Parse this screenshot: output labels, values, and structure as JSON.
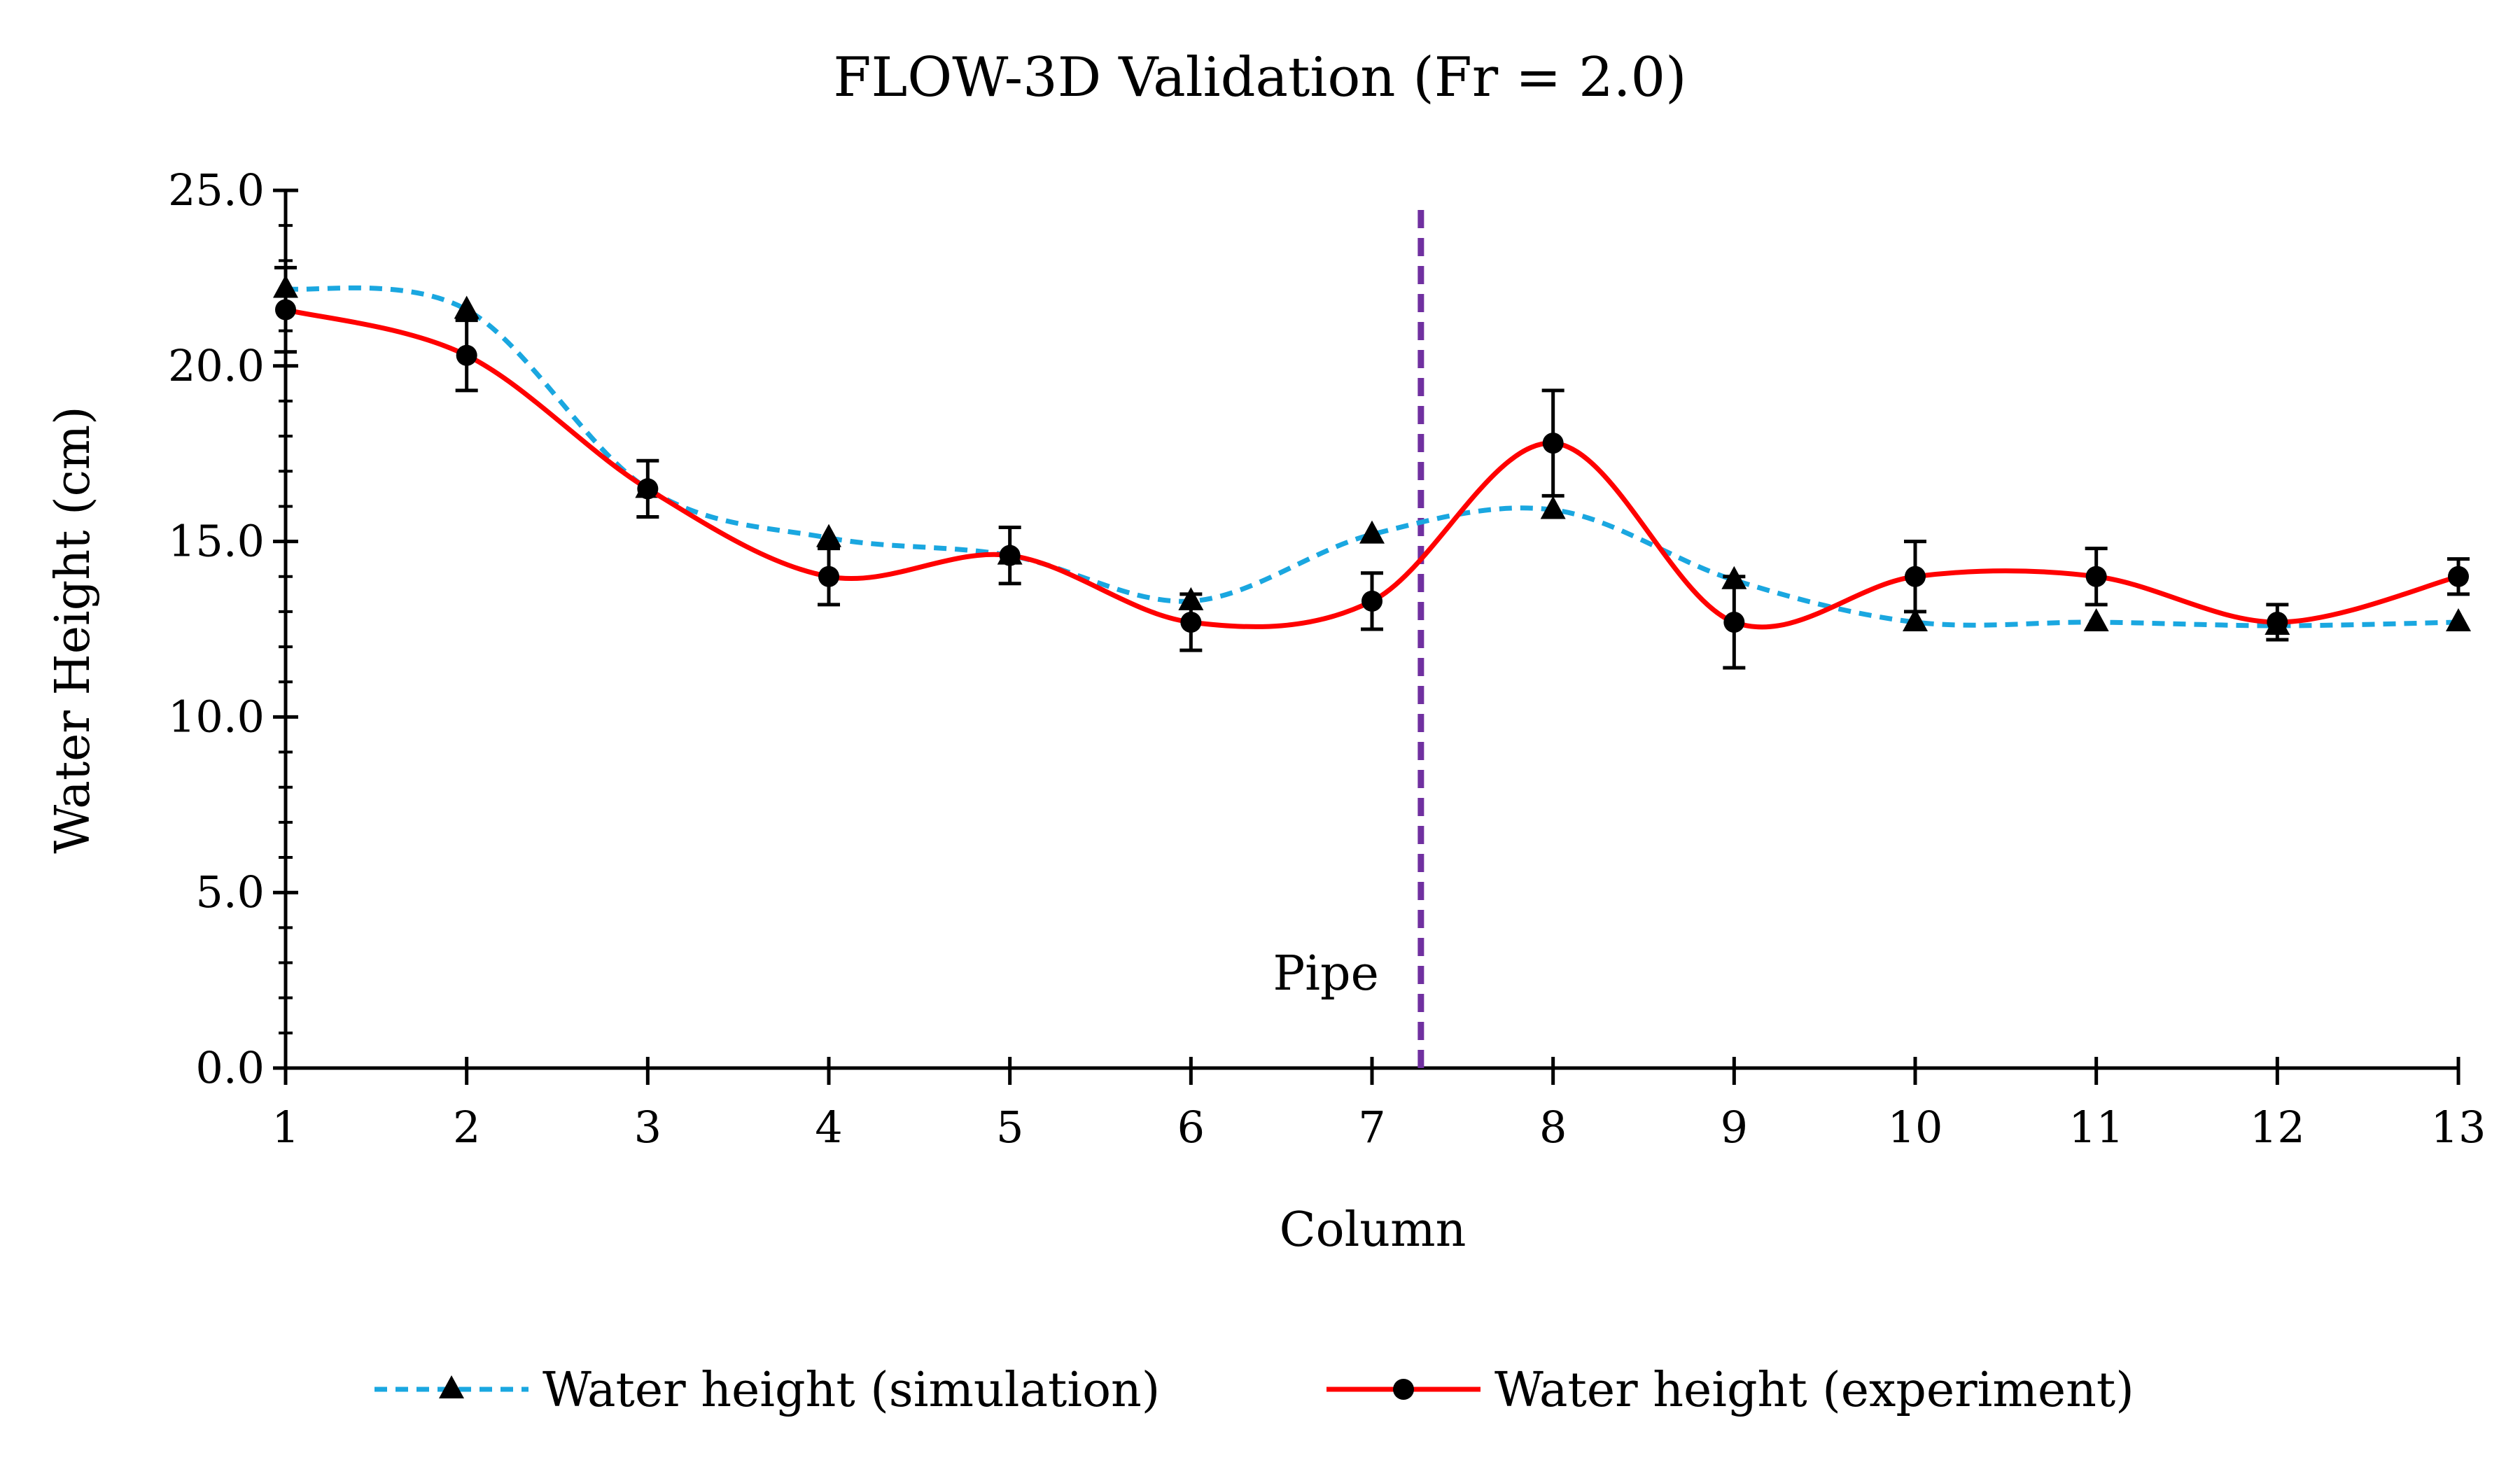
{
  "chart_data": {
    "type": "line",
    "title": "FLOW-3D Validation (Fr = 2.0)",
    "xlabel": "Column",
    "ylabel": "Water Height (cm)",
    "x": [
      1,
      2,
      3,
      4,
      5,
      6,
      7,
      8,
      9,
      10,
      11,
      12,
      13
    ],
    "x_tick_labels": [
      "1",
      "2",
      "3",
      "4",
      "5",
      "6",
      "7",
      "8",
      "9",
      "10",
      "11",
      "12",
      "13"
    ],
    "y_tick_labels": [
      "0.0",
      "5.0",
      "10.0",
      "15.0",
      "20.0",
      "25.0"
    ],
    "xlim": [
      1,
      13
    ],
    "ylim": [
      0,
      25
    ],
    "y_major_step": 5,
    "y_minor_step": 1,
    "grid": false,
    "legend_position": "bottom",
    "series": [
      {
        "name": "Water height (simulation)",
        "values": [
          22.2,
          21.6,
          16.5,
          15.1,
          14.6,
          13.3,
          15.2,
          15.9,
          13.9,
          12.7,
          12.7,
          12.6,
          12.7
        ],
        "color": "#1AA7E0",
        "line": "dashed",
        "marker": "triangle"
      },
      {
        "name": "Water height (experiment)",
        "values": [
          21.6,
          20.3,
          16.5,
          14.0,
          14.6,
          12.7,
          13.3,
          17.8,
          12.7,
          14.0,
          14.0,
          12.7,
          14.0
        ],
        "errors": [
          1.2,
          1.0,
          0.8,
          0.8,
          0.8,
          0.8,
          0.8,
          1.5,
          1.3,
          1.0,
          0.8,
          0.5,
          0.5
        ],
        "color": "#FF0000",
        "line": "solid",
        "marker": "circle"
      }
    ],
    "annotations": [
      {
        "text": "Pipe",
        "x": 7.27,
        "type": "vertical-line",
        "color": "#7030A0"
      }
    ]
  }
}
